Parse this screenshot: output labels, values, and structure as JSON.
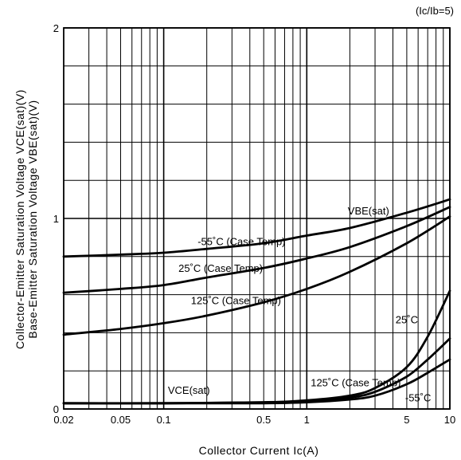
{
  "chart_data": {
    "type": "line",
    "condition": "(Ic/Ib=5)",
    "xlabel": "Collector Current Ic(A)",
    "ylabel_vce": "Collector-Emitter Saturation Voltage VCE(sat)(V)",
    "ylabel_vbe": "Base-Emitter Saturation Voltage VBE(sat)(V)",
    "x_scale": "log",
    "xlim": [
      0.02,
      10
    ],
    "ylim": [
      0,
      2
    ],
    "x_ticks": [
      {
        "value": 0.02,
        "label": "0.02"
      },
      {
        "value": 0.05,
        "label": "0.05"
      },
      {
        "value": 0.1,
        "label": "0.1"
      },
      {
        "value": 0.5,
        "label": "0.5"
      },
      {
        "value": 1,
        "label": "1"
      },
      {
        "value": 5,
        "label": "5"
      },
      {
        "value": 10,
        "label": "10"
      }
    ],
    "y_ticks": [
      {
        "value": 0,
        "label": "0"
      },
      {
        "value": 1,
        "label": "1"
      },
      {
        "value": 2,
        "label": "2"
      }
    ],
    "grid": true,
    "series": [
      {
        "name": "VBE(sat) -55°C (Case Temp)",
        "x": [
          0.02,
          0.05,
          0.1,
          0.2,
          0.5,
          1,
          2,
          5,
          10
        ],
        "y": [
          0.8,
          0.81,
          0.82,
          0.84,
          0.87,
          0.91,
          0.95,
          1.03,
          1.1
        ]
      },
      {
        "name": "VBE(sat) 25°C (Case Temp)",
        "x": [
          0.02,
          0.05,
          0.1,
          0.2,
          0.5,
          1,
          2,
          5,
          10
        ],
        "y": [
          0.61,
          0.63,
          0.65,
          0.69,
          0.74,
          0.79,
          0.85,
          0.96,
          1.06
        ]
      },
      {
        "name": "VBE(sat) 125°C (Case Temp)",
        "x": [
          0.02,
          0.05,
          0.1,
          0.2,
          0.5,
          1,
          2,
          5,
          10
        ],
        "y": [
          0.39,
          0.42,
          0.45,
          0.49,
          0.56,
          0.63,
          0.72,
          0.87,
          1.01
        ]
      },
      {
        "name": "VCE(sat) 25°C",
        "x": [
          0.02,
          0.1,
          0.5,
          1,
          2,
          3,
          5,
          7,
          10
        ],
        "y": [
          0.03,
          0.03,
          0.035,
          0.045,
          0.07,
          0.11,
          0.22,
          0.38,
          0.62
        ]
      },
      {
        "name": "VCE(sat) 125°C (Case Temp)",
        "x": [
          0.02,
          0.1,
          0.5,
          1,
          2,
          3,
          5,
          7,
          10
        ],
        "y": [
          0.03,
          0.03,
          0.035,
          0.04,
          0.06,
          0.09,
          0.17,
          0.26,
          0.37
        ]
      },
      {
        "name": "VCE(sat) -55°C",
        "x": [
          0.02,
          0.1,
          0.5,
          1,
          2,
          3,
          5,
          7,
          10
        ],
        "y": [
          0.03,
          0.03,
          0.03,
          0.035,
          0.05,
          0.07,
          0.13,
          0.19,
          0.26
        ]
      }
    ],
    "annotations": [
      {
        "text": "VBE(sat)",
        "x": 2.7,
        "y": 1.02
      },
      {
        "text": "-55˚C (Case Temp)",
        "x": 0.35,
        "y": 0.86
      },
      {
        "text": "25˚C (Case Temp)",
        "x": 0.25,
        "y": 0.72
      },
      {
        "text": "125˚C (Case Temp)",
        "x": 0.32,
        "y": 0.55
      },
      {
        "text": "VCE(sat)",
        "x": 0.15,
        "y": 0.08
      },
      {
        "text": "125˚C (Case Temp)",
        "x": 2.2,
        "y": 0.12
      },
      {
        "text": "25˚C",
        "x": 5.0,
        "y": 0.45
      },
      {
        "text": "-55˚C",
        "x": 6.0,
        "y": 0.04
      }
    ]
  }
}
